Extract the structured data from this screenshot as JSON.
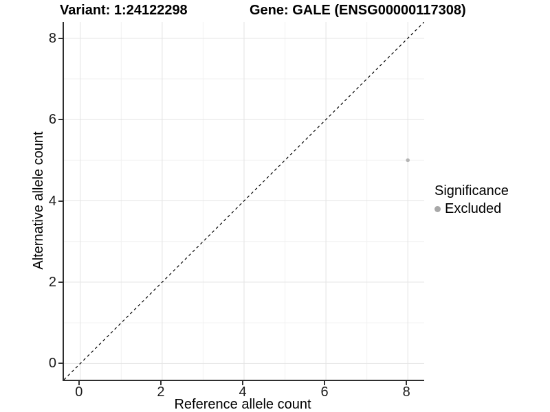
{
  "titles": {
    "variant": "Variant: 1:24122298",
    "gene": "Gene: GALE (ENSG00000117308)"
  },
  "chart_data": {
    "type": "scatter",
    "title_left": "Variant: 1:24122298",
    "title_right": "Gene: GALE (ENSG00000117308)",
    "xlabel": "Reference allele count",
    "ylabel": "Alternative allele count",
    "xlim": [
      -0.4,
      8.4
    ],
    "ylim": [
      -0.4,
      8.4
    ],
    "x_ticks": [
      0,
      2,
      4,
      6,
      8
    ],
    "y_ticks": [
      0,
      2,
      4,
      6,
      8
    ],
    "x_minor_ticks": [
      1,
      3,
      5,
      7
    ],
    "y_minor_ticks": [
      1,
      3,
      5,
      7
    ],
    "grid": true,
    "abline": {
      "slope": 1,
      "intercept": 0,
      "style": "dashed",
      "color": "#000000"
    },
    "points": [
      {
        "x": 8,
        "y": 5,
        "series": "Excluded",
        "color": "#b4b4b4",
        "radius": 2.8
      }
    ],
    "legend": {
      "title": "Significance",
      "position": "right",
      "items": [
        {
          "label": "Excluded",
          "color": "#a8a8a8"
        }
      ]
    },
    "colors": {
      "grid_major": "#e3e3e3",
      "grid_minor": "#f1f1f1",
      "axis_line": "#2e2e2e",
      "tick_mark": "#333333",
      "tick_label": "#1a1a1a"
    }
  }
}
